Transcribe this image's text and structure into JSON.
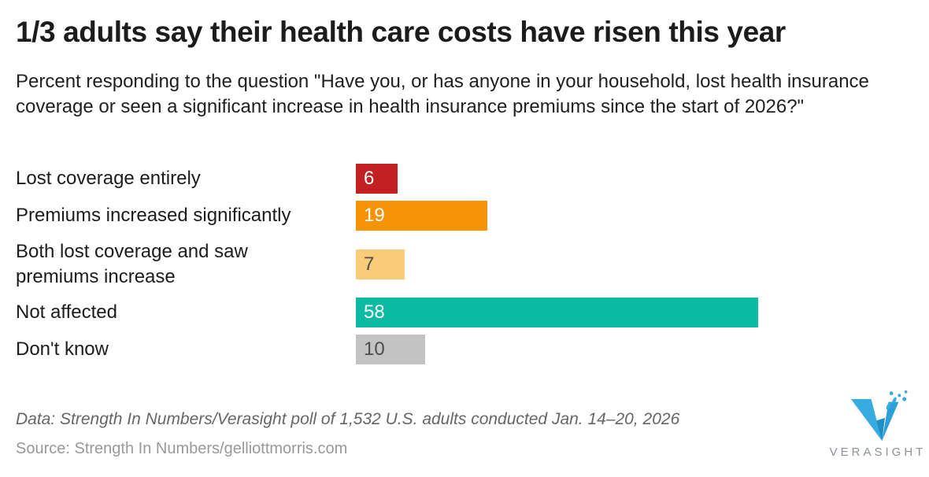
{
  "header": {
    "title": "1/3 adults say their health care costs have risen this year",
    "subtitle": "Percent responding to the question \"Have you, or has anyone in your household, lost health insurance coverage or seen a significant increase in health insurance premiums since the start of 2026?\""
  },
  "chart_data": {
    "type": "bar",
    "orientation": "horizontal",
    "title": "1/3 adults say their health care costs have risen this year",
    "categories": [
      "Lost coverage entirely",
      "Premiums increased significantly",
      "Both lost coverage and saw premiums increase",
      "Not affected",
      "Don't know"
    ],
    "values": [
      6,
      19,
      7,
      58,
      10
    ],
    "bar_colors": [
      "#C32121",
      "#F89206",
      "#FACB78",
      "#0CBBA1",
      "#C3C3C3"
    ],
    "value_label_colors": [
      "#FFFFFF",
      "#FFFFFF",
      "#4D4D4D",
      "#FFFFFF",
      "#4D4D4D"
    ],
    "value_labels_inside_bars": true,
    "xlim": [
      0,
      58
    ],
    "xlabel": "",
    "ylabel": "",
    "grid": false,
    "legend": false
  },
  "footer": {
    "data_note": "Data: Strength In Numbers/Verasight poll of 1,532 U.S. adults conducted Jan. 14–20, 2026",
    "source": "Source: Strength In Numbers/gelliottmorris.com",
    "brand": "VERASIGHT",
    "logo_color": "#36ACDF"
  }
}
